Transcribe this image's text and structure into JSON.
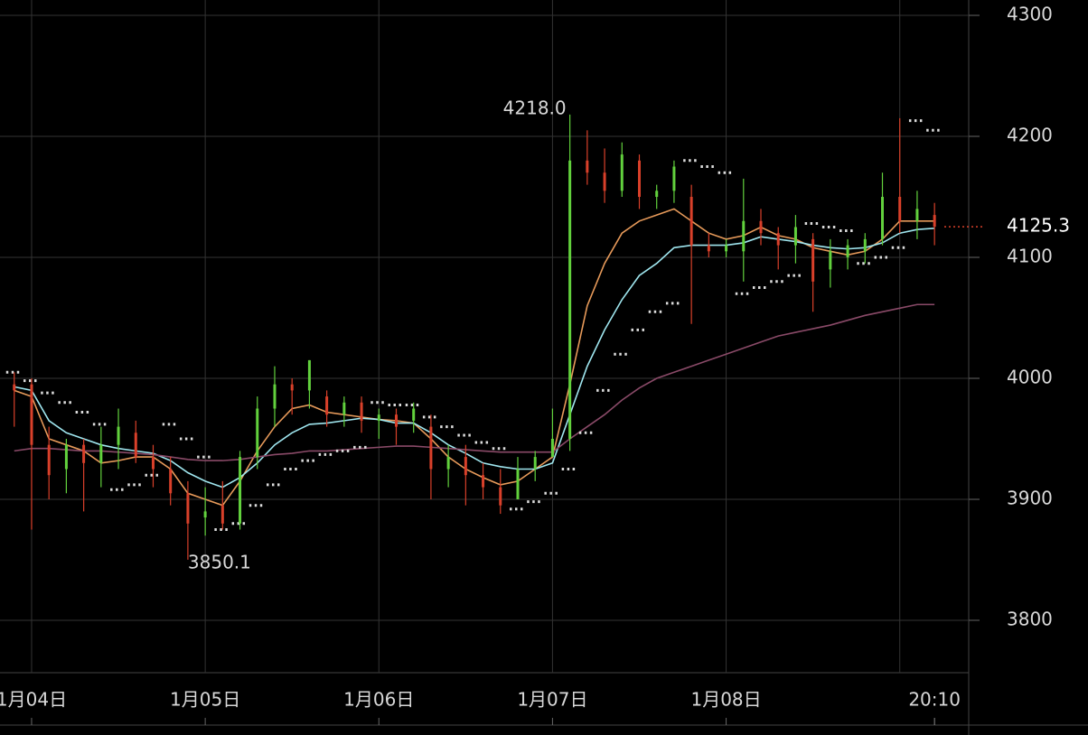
{
  "chart_data": {
    "type": "ohlc",
    "x": [
      -1,
      0,
      1,
      2,
      3,
      4,
      5,
      6,
      7,
      8,
      9,
      10,
      11,
      12,
      13,
      14,
      15,
      16,
      17,
      18,
      19,
      20,
      21,
      22,
      23,
      24,
      25,
      26,
      27,
      28,
      29,
      30,
      31,
      32,
      33,
      34,
      35,
      36,
      37,
      38,
      39,
      40,
      41,
      42,
      43,
      44,
      45,
      46,
      47,
      48,
      49,
      50,
      51,
      52
    ],
    "open": [
      3995,
      3995,
      3945,
      3925,
      3945,
      3930,
      3945,
      3955,
      3935,
      3925,
      3905,
      3885,
      3895,
      3880,
      3935,
      3975,
      3995,
      3990,
      3985,
      3970,
      3980,
      3965,
      3970,
      3965,
      3960,
      3925,
      3935,
      3920,
      3910,
      3900,
      3925,
      3935,
      3950,
      4180,
      4170,
      4155,
      4180,
      4150,
      4155,
      4150,
      4110,
      4105,
      4105,
      4130,
      4120,
      4110,
      4115,
      4090,
      4100,
      4105,
      4115,
      4150,
      4130,
      4135
    ],
    "high": [
      4005,
      4000,
      3960,
      3950,
      3950,
      3960,
      3975,
      3965,
      3945,
      3935,
      3915,
      3910,
      3915,
      3940,
      3985,
      4010,
      4000,
      4015,
      3990,
      3985,
      3985,
      3975,
      3975,
      3980,
      3970,
      3945,
      3945,
      3930,
      3925,
      3935,
      3940,
      3975,
      4218.0,
      4205,
      4190,
      4195,
      4185,
      4160,
      4180,
      4160,
      4120,
      4115,
      4165,
      4140,
      4125,
      4135,
      4120,
      4115,
      4115,
      4120,
      4170,
      4215,
      4155,
      4145
    ],
    "low": [
      3960,
      3875,
      3900,
      3905,
      3890,
      3910,
      3925,
      3930,
      3910,
      3895,
      3850.1,
      3870,
      3875,
      3875,
      3925,
      3960,
      3970,
      3975,
      3960,
      3960,
      3955,
      3950,
      3945,
      3955,
      3900,
      3910,
      3895,
      3900,
      3888,
      3900,
      3915,
      3935,
      3940,
      4160,
      4145,
      4150,
      4140,
      4140,
      4145,
      4045,
      4100,
      4100,
      4080,
      4110,
      4090,
      4095,
      4055,
      4075,
      4090,
      4095,
      4110,
      4120,
      4115,
      4110
    ],
    "close": [
      3990,
      3945,
      3920,
      3945,
      3930,
      3945,
      3960,
      3935,
      3925,
      3905,
      3880,
      3890,
      3880,
      3935,
      3975,
      3995,
      3990,
      4015,
      3970,
      3980,
      3965,
      3970,
      3960,
      3975,
      3925,
      3935,
      3920,
      3910,
      3895,
      3925,
      3935,
      3950,
      4180,
      4170,
      4155,
      4185,
      4150,
      4155,
      4175,
      4110,
      4105,
      4110,
      4130,
      4120,
      4110,
      4125,
      4080,
      4105,
      4110,
      4115,
      4150,
      4130,
      4140,
      4125.3
    ],
    "up_color": "#62d13d",
    "down_color": "#d9402a",
    "lines": [
      {
        "color": "#e79a5a",
        "values": [
          3990,
          3985,
          3950,
          3945,
          3940,
          3930,
          3932,
          3935,
          3935,
          3925,
          3905,
          3900,
          3895,
          3915,
          3940,
          3960,
          3975,
          3978,
          3972,
          3970,
          3968,
          3966,
          3965,
          3963,
          3950,
          3935,
          3925,
          3918,
          3912,
          3915,
          3925,
          3935,
          3995,
          4060,
          4095,
          4120,
          4130,
          4135,
          4140,
          4130,
          4120,
          4115,
          4118,
          4125,
          4118,
          4115,
          4108,
          4105,
          4102,
          4105,
          4115,
          4130,
          4130,
          4130
        ]
      },
      {
        "color": "#9fe6ef",
        "values": [
          3993,
          3990,
          3965,
          3955,
          3950,
          3945,
          3942,
          3940,
          3938,
          3932,
          3922,
          3915,
          3910,
          3918,
          3930,
          3945,
          3955,
          3962,
          3963,
          3965,
          3967,
          3966,
          3963,
          3963,
          3955,
          3945,
          3938,
          3930,
          3927,
          3925,
          3925,
          3930,
          3970,
          4010,
          4040,
          4065,
          4085,
          4095,
          4108,
          4110,
          4110,
          4110,
          4112,
          4117,
          4115,
          4113,
          4110,
          4108,
          4107,
          4108,
          4112,
          4120,
          4123,
          4124
        ]
      },
      {
        "color": "#8a4a68",
        "values": [
          3940,
          3942,
          3942,
          3941,
          3940,
          3940,
          3939,
          3938,
          3937,
          3935,
          3933,
          3932,
          3932,
          3933,
          3935,
          3937,
          3938,
          3940,
          3940,
          3941,
          3942,
          3943,
          3944,
          3944,
          3943,
          3942,
          3941,
          3940,
          3939,
          3939,
          3939,
          3939,
          3950,
          3960,
          3970,
          3982,
          3992,
          4000,
          4005,
          4010,
          4015,
          4020,
          4025,
          4030,
          4035,
          4038,
          4041,
          4044,
          4048,
          4052,
          4055,
          4058,
          4061,
          4061
        ]
      }
    ],
    "sar": {
      "color": "#dcdcdc",
      "values": [
        4005,
        3998,
        3988,
        3980,
        3972,
        3962,
        3908,
        3912,
        3920,
        3962,
        3950,
        3935,
        3875,
        3880,
        3895,
        3912,
        3925,
        3932,
        3937,
        3940,
        3943,
        3980,
        3978,
        3978,
        3968,
        3960,
        3953,
        3947,
        3942,
        3892,
        3898,
        3905,
        3925,
        3955,
        3990,
        4020,
        4040,
        4055,
        4062,
        4180,
        4175,
        4170,
        4070,
        4075,
        4080,
        4085,
        4128,
        4125,
        4122,
        4095,
        4100,
        4108,
        4213,
        4205
      ]
    },
    "xlim": [
      -1.82,
      53.97
    ],
    "ylim": [
      3756.7,
      4312.7
    ],
    "yticks": [
      3800,
      3900,
      4000,
      4100,
      4200,
      4300
    ],
    "xticks": [
      {
        "value": 0,
        "label": "1月04日"
      },
      {
        "value": 10,
        "label": "1月05日"
      },
      {
        "value": 20,
        "label": "1月06日"
      },
      {
        "value": 30,
        "label": "1月07日"
      },
      {
        "value": 40,
        "label": "1月08日"
      },
      {
        "value": 50,
        "label": null
      }
    ],
    "last_time": {
      "value": 52,
      "label": "20:10"
    },
    "last_price": {
      "value": 4125.3,
      "label": "4125.3"
    },
    "annotations": [
      {
        "x": 31,
        "value": 4218.0,
        "label": "4218.0"
      },
      {
        "x": 9,
        "value": 3850.1,
        "label": "3850.1"
      }
    ]
  }
}
